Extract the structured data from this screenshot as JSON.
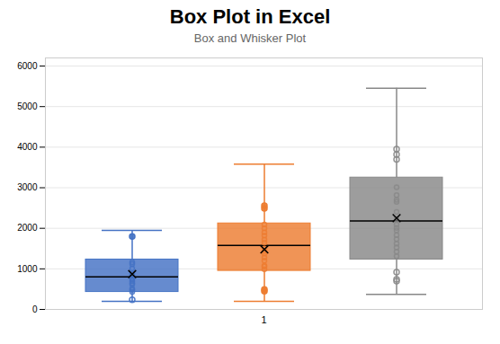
{
  "chart_data": {
    "type": "box",
    "title": "Box Plot in Excel",
    "subtitle": "Box and Whisker Plot",
    "categories": [
      "1"
    ],
    "ylim": [
      0,
      6200
    ],
    "yticks": [
      0,
      1000,
      2000,
      3000,
      4000,
      5000,
      6000
    ],
    "grid": true,
    "series": [
      {
        "color": "#4472C4",
        "q1": 430,
        "median": 800,
        "q3": 1230,
        "mean": 870,
        "whisker_low": 200,
        "whisker_high": 1950,
        "outliers_filled": [
          1800
        ],
        "outliers_open": [
          240
        ],
        "points": [
          700,
          620,
          650,
          760,
          880,
          1010,
          1120,
          510,
          480,
          430,
          1160,
          830,
          760
        ]
      },
      {
        "color": "#ED7D31",
        "q1": 950,
        "median": 1580,
        "q3": 2120,
        "mean": 1480,
        "whisker_low": 200,
        "whisker_high": 3580,
        "outliers_filled": [
          450,
          490,
          2560,
          2490
        ],
        "outliers_open": [],
        "points": [
          990,
          1080,
          1280,
          1500,
          1650,
          1820,
          1900,
          2000,
          2090,
          1380,
          1200,
          1060,
          1440,
          1720
        ]
      },
      {
        "color": "#888888",
        "q1": 1230,
        "median": 2180,
        "q3": 3250,
        "mean": 2250,
        "whisker_low": 370,
        "whisker_high": 5450,
        "outliers_filled": [],
        "outliers_open": [
          700,
          740,
          920,
          3820,
          3700,
          3950
        ],
        "points": [
          1310,
          1420,
          1530,
          1620,
          1830,
          2010,
          2100,
          2230,
          2400,
          2650,
          2820,
          3010,
          1730,
          1950,
          2200,
          2700
        ]
      }
    ]
  }
}
